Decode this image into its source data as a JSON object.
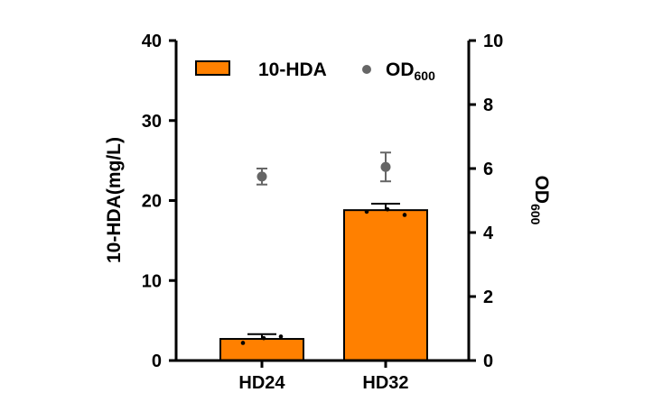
{
  "chart_data": {
    "type": "bar",
    "categories": [
      "HD24",
      "HD32"
    ],
    "series": [
      {
        "name": "10-HDA",
        "axis": "left",
        "mark": "bar",
        "values": [
          2.7,
          18.8
        ],
        "error": [
          0.6,
          0.8
        ],
        "replicates": [
          [
            2.2,
            2.8,
            3.0
          ],
          [
            18.6,
            18.9,
            18.2
          ]
        ]
      },
      {
        "name": "OD",
        "name_subscript": "600",
        "axis": "right",
        "mark": "point",
        "values": [
          5.75,
          6.05
        ],
        "error": [
          0.25,
          0.45
        ]
      }
    ],
    "ylabel": "10-HDA(mg/L)",
    "y2label": "OD",
    "y2label_subscript": "600",
    "ylim": [
      0,
      40
    ],
    "y2lim": [
      0,
      10
    ],
    "yticks": [
      "0",
      "10",
      "20",
      "30",
      "40"
    ],
    "y2ticks": [
      "0",
      "2",
      "4",
      "6",
      "8",
      "10"
    ],
    "colors": {
      "bar": "#ff8000",
      "bar_edge": "#000000",
      "point": "#666666"
    },
    "legend": "top",
    "grid": false
  }
}
